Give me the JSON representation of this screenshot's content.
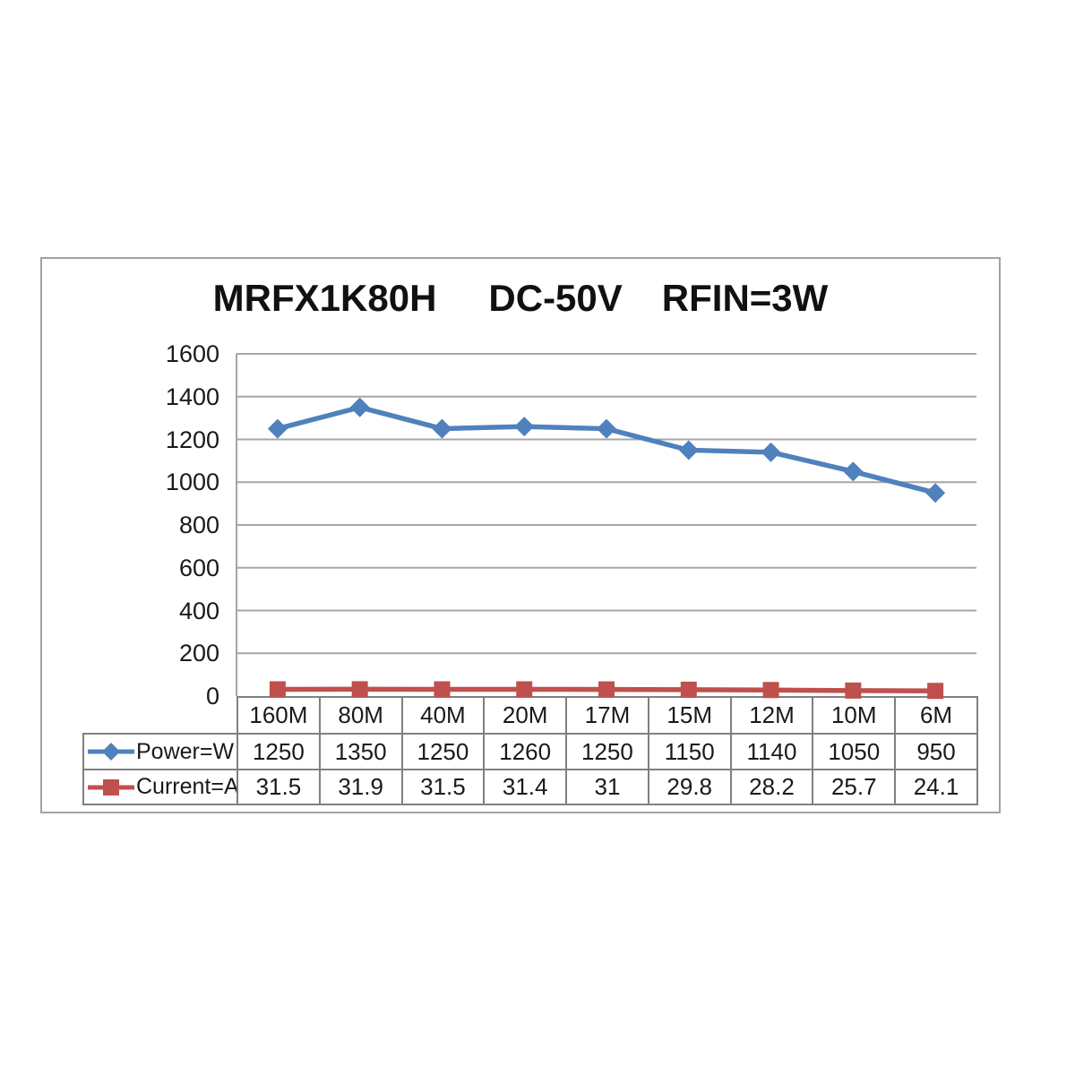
{
  "colors": {
    "grid": "#a6a6a6",
    "axis": "#a6a6a6",
    "table_border": "#808080",
    "text": "#1a1a1a",
    "frame_border": "#a3a3a3",
    "background": "#ffffff",
    "power_series": "#4f81bd",
    "current_series": "#c0504d"
  },
  "chart_data": {
    "type": "line",
    "title": "MRFX1K80H    DC-50V   RFIN=3W",
    "title_parts": [
      "MRFX1K80H",
      "DC-50V",
      "RFIN=3W"
    ],
    "categories": [
      "160M",
      "80M",
      "40M",
      "20M",
      "17M",
      "15M",
      "12M",
      "10M",
      "6M"
    ],
    "series": [
      {
        "name": "Power=W",
        "color": "#4f81bd",
        "marker": "diamond",
        "values": [
          1250,
          1350,
          1250,
          1260,
          1250,
          1150,
          1140,
          1050,
          950
        ]
      },
      {
        "name": "Current=A",
        "color": "#c0504d",
        "marker": "square",
        "values": [
          31.5,
          31.9,
          31.5,
          31.4,
          31,
          29.8,
          28.2,
          25.7,
          24.1
        ]
      }
    ],
    "xlabel": "",
    "ylabel": "",
    "ylim": [
      0,
      1600
    ],
    "yticks": [
      0,
      200,
      400,
      600,
      800,
      1000,
      1200,
      1400,
      1600
    ],
    "grid": true,
    "legend_position": "table-left"
  }
}
